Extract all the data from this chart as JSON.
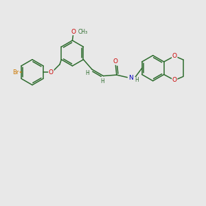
{
  "background_color": "#e8e8e8",
  "bond_color": "#2d6b2d",
  "atom_colors": {
    "Br": "#cc7700",
    "O": "#cc0000",
    "N": "#0000bb",
    "C": "#2d6b2d",
    "H": "#2d6b2d"
  },
  "figsize": [
    3.0,
    3.0
  ],
  "dpi": 100,
  "lw": 1.1,
  "r": 0.62,
  "font_size": 6.0
}
